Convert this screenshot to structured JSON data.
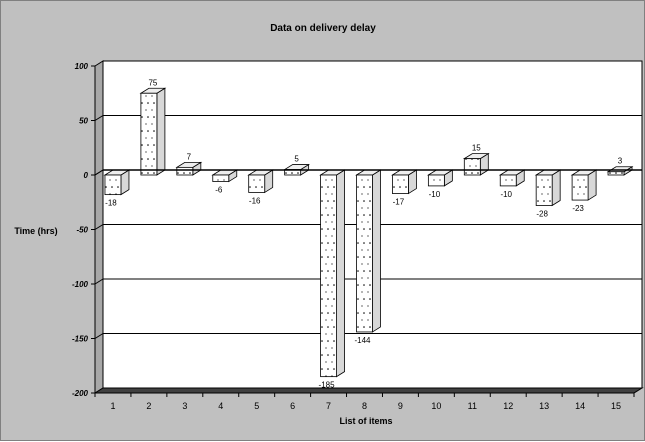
{
  "chart_data": {
    "type": "bar",
    "title": "Data on delivery delay",
    "xlabel": "List of items",
    "ylabel": "Time (hrs)",
    "categories": [
      "1",
      "2",
      "3",
      "4",
      "5",
      "6",
      "7",
      "8",
      "9",
      "10",
      "11",
      "12",
      "13",
      "14",
      "15"
    ],
    "values": [
      -18,
      75,
      7,
      -6,
      -16,
      5,
      -185,
      -144,
      -17,
      -10,
      15,
      -10,
      -28,
      -23,
      3
    ],
    "ylim": [
      -200,
      100
    ],
    "yticks": [
      100,
      50,
      0,
      -50,
      -100,
      -150,
      -200
    ],
    "grid": true,
    "colors": {
      "bar": "#ffffff",
      "pattern": "#000000",
      "plot_bg": "#ffffff",
      "floor": "#404040",
      "frame_bg": "#c0c0c0"
    }
  }
}
